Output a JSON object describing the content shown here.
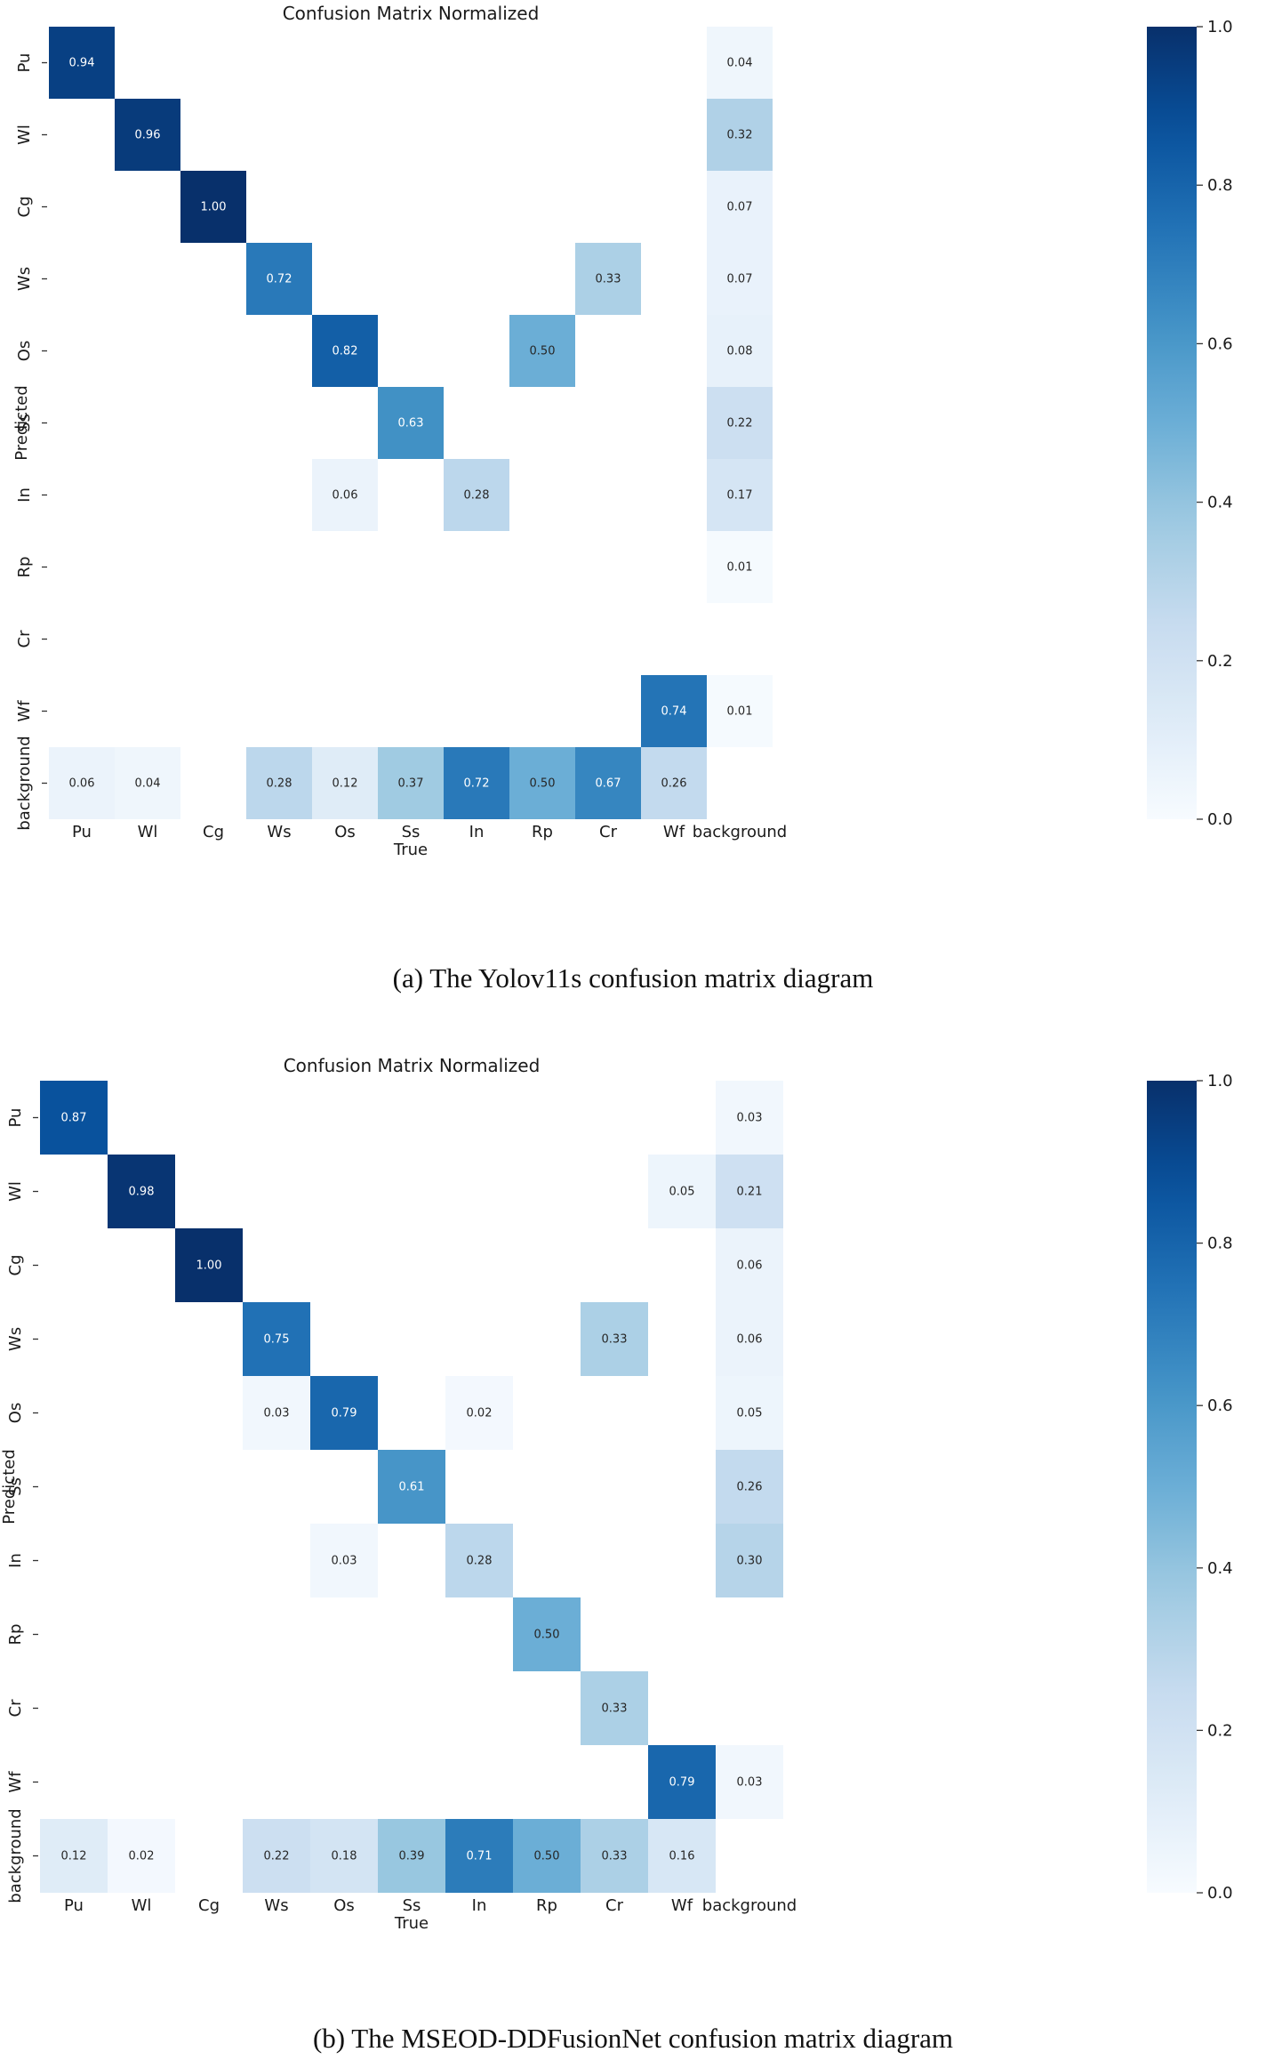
{
  "chart_data": [
    {
      "type": "heatmap",
      "title": "Confusion Matrix Normalized",
      "xlabel": "True",
      "ylabel": "Predicted",
      "caption": "(a)  The Yolov11s confusion matrix diagram",
      "x_labels": [
        "Pu",
        "Wl",
        "Cg",
        "Ws",
        "Os",
        "Ss",
        "In",
        "Rp",
        "Cr",
        "Wf",
        "background"
      ],
      "y_labels": [
        "Pu",
        "Wl",
        "Cg",
        "Ws",
        "Os",
        "Ss",
        "In",
        "Rp",
        "Cr",
        "Wf",
        "background"
      ],
      "values": [
        [
          0.94,
          null,
          null,
          null,
          null,
          null,
          null,
          null,
          null,
          null,
          0.04
        ],
        [
          null,
          0.96,
          null,
          null,
          null,
          null,
          null,
          null,
          null,
          null,
          0.32
        ],
        [
          null,
          null,
          1.0,
          null,
          null,
          null,
          null,
          null,
          null,
          null,
          0.07
        ],
        [
          null,
          null,
          null,
          0.72,
          null,
          null,
          null,
          null,
          0.33,
          null,
          0.07
        ],
        [
          null,
          null,
          null,
          null,
          0.82,
          null,
          null,
          0.5,
          null,
          null,
          0.08
        ],
        [
          null,
          null,
          null,
          null,
          null,
          0.63,
          null,
          null,
          null,
          null,
          0.22
        ],
        [
          null,
          null,
          null,
          null,
          0.06,
          null,
          0.28,
          null,
          null,
          null,
          0.17
        ],
        [
          null,
          null,
          null,
          null,
          null,
          null,
          null,
          null,
          null,
          null,
          0.01
        ],
        [
          null,
          null,
          null,
          null,
          null,
          null,
          null,
          null,
          null,
          null,
          null
        ],
        [
          null,
          null,
          null,
          null,
          null,
          null,
          null,
          null,
          null,
          0.74,
          0.01
        ],
        [
          0.06,
          0.04,
          null,
          0.28,
          0.12,
          0.37,
          0.72,
          0.5,
          0.67,
          0.26,
          null
        ]
      ],
      "colorbar": {
        "range": [
          0.0,
          1.0
        ],
        "ticks": [
          "0.0",
          "0.2",
          "0.4",
          "0.6",
          "0.8",
          "1.0"
        ],
        "colormap": "Blues"
      }
    },
    {
      "type": "heatmap",
      "title": "Confusion Matrix Normalized",
      "xlabel": "True",
      "ylabel": "Predicted",
      "caption": "(b)  The MSEOD-DDFusionNet confusion matrix diagram",
      "x_labels": [
        "Pu",
        "Wl",
        "Cg",
        "Ws",
        "Os",
        "Ss",
        "In",
        "Rp",
        "Cr",
        "Wf",
        "background"
      ],
      "y_labels": [
        "Pu",
        "Wl",
        "Cg",
        "Ws",
        "Os",
        "Ss",
        "In",
        "Rp",
        "Cr",
        "Wf",
        "background"
      ],
      "values": [
        [
          0.87,
          null,
          null,
          null,
          null,
          null,
          null,
          null,
          null,
          null,
          0.03
        ],
        [
          null,
          0.98,
          null,
          null,
          null,
          null,
          null,
          null,
          null,
          0.05,
          0.21
        ],
        [
          null,
          null,
          1.0,
          null,
          null,
          null,
          null,
          null,
          null,
          null,
          0.06
        ],
        [
          null,
          null,
          null,
          0.75,
          null,
          null,
          null,
          null,
          0.33,
          null,
          0.06
        ],
        [
          null,
          null,
          null,
          0.03,
          0.79,
          null,
          0.02,
          null,
          null,
          null,
          0.05
        ],
        [
          null,
          null,
          null,
          null,
          null,
          0.61,
          null,
          null,
          null,
          null,
          0.26
        ],
        [
          null,
          null,
          null,
          null,
          0.03,
          null,
          0.28,
          null,
          null,
          null,
          0.3
        ],
        [
          null,
          null,
          null,
          null,
          null,
          null,
          null,
          0.5,
          null,
          null,
          null
        ],
        [
          null,
          null,
          null,
          null,
          null,
          null,
          null,
          null,
          0.33,
          null,
          null
        ],
        [
          null,
          null,
          null,
          null,
          null,
          null,
          null,
          null,
          null,
          0.79,
          0.03
        ],
        [
          0.12,
          0.02,
          null,
          0.22,
          0.18,
          0.39,
          0.71,
          0.5,
          0.33,
          0.16,
          null
        ]
      ],
      "colorbar": {
        "range": [
          0.0,
          1.0
        ],
        "ticks": [
          "0.0",
          "0.2",
          "0.4",
          "0.6",
          "0.8",
          "1.0"
        ],
        "colormap": "Blues"
      }
    }
  ]
}
